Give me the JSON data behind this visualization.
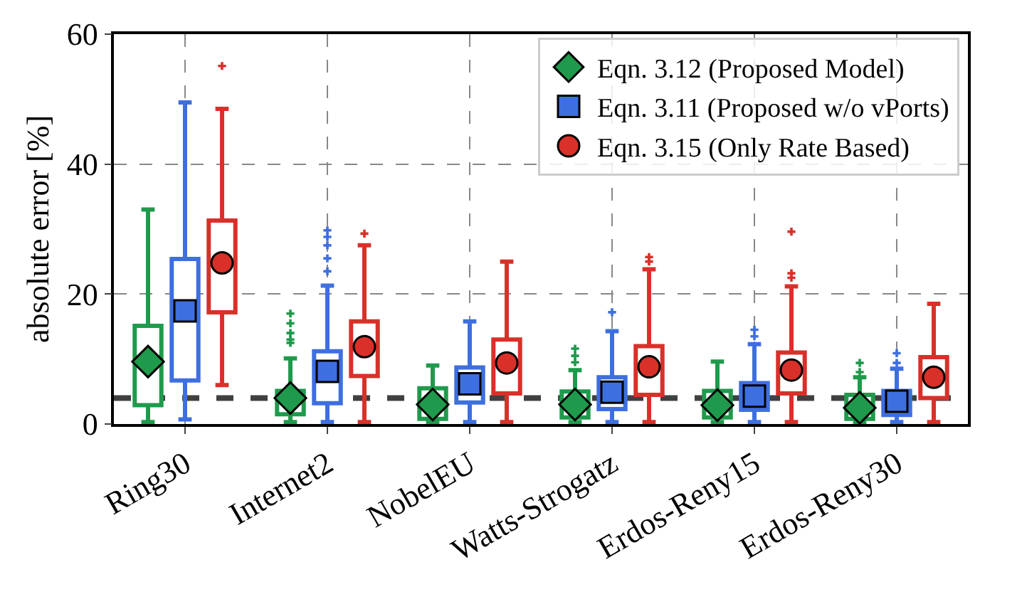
{
  "chart_data": {
    "type": "box",
    "ylabel": "absolute error [%]",
    "categories": [
      "Ring30",
      "Internet2",
      "NobelEU",
      "Watts-Strogatz",
      "Erdos-Reny15",
      "Erdos-Reny30"
    ],
    "ylim": [
      0,
      60
    ],
    "yticks": [
      0,
      20,
      40,
      60
    ],
    "grid": true,
    "legend": "top right",
    "ref_lines": [
      {
        "axis": "y",
        "value": 4,
        "color": "#404040",
        "line_style": "dashed"
      }
    ],
    "series": [
      {
        "name": "Eqn. 3.12 (Proposed Model)",
        "color": "#1f9a4c",
        "marker": "diamond",
        "boxes": [
          {
            "low": 0.3,
            "q1": 2.9,
            "median": 9.6,
            "q3": 15.1,
            "high": 33.0,
            "mean": 9.6
          },
          {
            "low": 0.3,
            "q1": 1.5,
            "median": 4.0,
            "q3": 5.1,
            "high": 10.1,
            "mean": 4.0,
            "outliers": [
              12.5,
              13,
              14,
              15.5,
              17
            ]
          },
          {
            "low": 0.3,
            "q1": 0.8,
            "median": 3.0,
            "q3": 5.5,
            "high": 9.0,
            "mean": 3.0
          },
          {
            "low": 0.3,
            "q1": 1.0,
            "median": 3.0,
            "q3": 5.0,
            "high": 8.3,
            "mean": 3.0,
            "outliers": [
              9.5,
              10.5,
              11.6
            ]
          },
          {
            "low": 0.3,
            "q1": 1.0,
            "median": 2.9,
            "q3": 5.1,
            "high": 9.6,
            "mean": 2.9
          },
          {
            "low": 0.3,
            "q1": 0.8,
            "median": 2.5,
            "q3": 4.5,
            "high": 7.2,
            "mean": 2.5,
            "outliers": [
              8.0,
              9.4
            ]
          }
        ]
      },
      {
        "name": "Eqn. 3.11 (Proposed w/o vPorts)",
        "color": "#3e6fe0",
        "marker": "square",
        "boxes": [
          {
            "low": 0.7,
            "q1": 6.7,
            "median": 17.4,
            "q3": 25.4,
            "high": 49.5,
            "mean": 17.4
          },
          {
            "low": 0.3,
            "q1": 3.2,
            "median": 8.1,
            "q3": 11.2,
            "high": 21.3,
            "mean": 8.1,
            "outliers": [
              23.5,
              25.5,
              27.5,
              28.8,
              29.8
            ]
          },
          {
            "low": 0.3,
            "q1": 3.3,
            "median": 6.2,
            "q3": 8.7,
            "high": 15.8,
            "mean": 6.2
          },
          {
            "low": 0.3,
            "q1": 2.3,
            "median": 4.9,
            "q3": 7.2,
            "high": 14.3,
            "mean": 4.9,
            "outliers": [
              17.2
            ]
          },
          {
            "low": 0.3,
            "q1": 2.2,
            "median": 4.3,
            "q3": 6.3,
            "high": 12.3,
            "mean": 4.3,
            "outliers": [
              13.5,
              14.5
            ]
          },
          {
            "low": 0.3,
            "q1": 1.4,
            "median": 3.5,
            "q3": 5.1,
            "high": 8.5,
            "mean": 3.5,
            "outliers": [
              9.4,
              10.9
            ]
          }
        ]
      },
      {
        "name": "Eqn. 3.15 (Only Rate Based)",
        "color": "#d9302a",
        "marker": "circle",
        "boxes": [
          {
            "low": 6.0,
            "q1": 17.2,
            "median": 24.8,
            "q3": 31.3,
            "high": 48.5,
            "mean": 24.8,
            "outliers": [
              55.1
            ]
          },
          {
            "low": 0.3,
            "q1": 7.4,
            "median": 11.9,
            "q3": 15.8,
            "high": 27.5,
            "mean": 11.9,
            "outliers": [
              29.3
            ]
          },
          {
            "low": 0.3,
            "q1": 4.7,
            "median": 9.4,
            "q3": 13.0,
            "high": 25.0,
            "mean": 9.4
          },
          {
            "low": 0.3,
            "q1": 4.5,
            "median": 8.8,
            "q3": 12.0,
            "high": 23.8,
            "mean": 8.8,
            "outliers": [
              25.0,
              25.7
            ]
          },
          {
            "low": 0.3,
            "q1": 4.7,
            "median": 8.3,
            "q3": 11.0,
            "high": 21.2,
            "mean": 8.3,
            "outliers": [
              22.5,
              23.2,
              29.6
            ]
          },
          {
            "low": 0.3,
            "q1": 4.0,
            "median": 7.2,
            "q3": 10.3,
            "high": 18.5,
            "mean": 7.2
          }
        ]
      }
    ]
  }
}
